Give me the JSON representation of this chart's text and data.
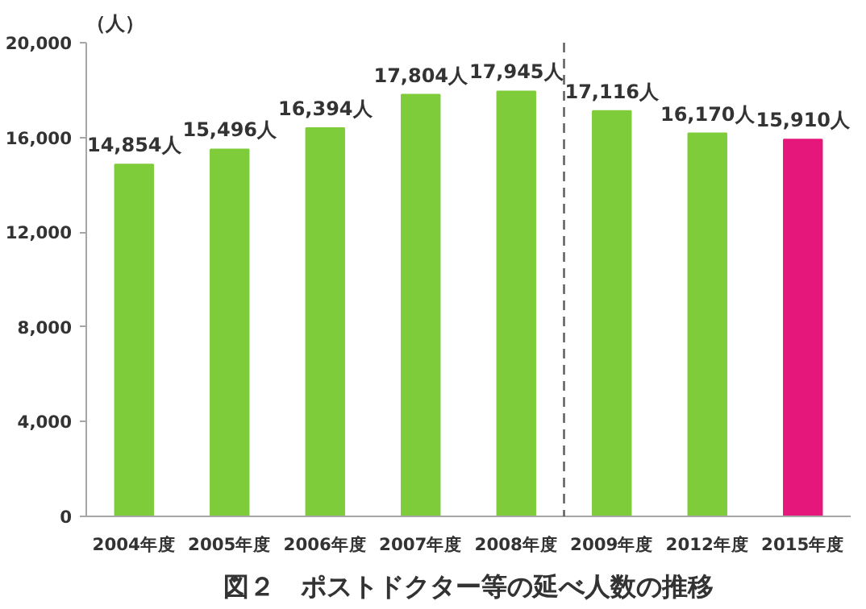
{
  "chart_data": {
    "type": "bar",
    "title": "図２　ポストドクター等の延べ人数の推移",
    "ylabel": "（人）",
    "categories": [
      "2004年度",
      "2005年度",
      "2006年度",
      "2007年度",
      "2008年度",
      "2009年度",
      "2012年度",
      "2015年度"
    ],
    "values": [
      14854,
      15496,
      16394,
      17804,
      17945,
      17116,
      16170,
      15910
    ],
    "colors": [
      "#7fcc3a",
      "#7fcc3a",
      "#7fcc3a",
      "#7fcc3a",
      "#7fcc3a",
      "#7fcc3a",
      "#7fcc3a",
      "#e6177a"
    ],
    "value_labels": [
      "14,854人",
      "15,496人",
      "16,394人",
      "17,804人",
      "17,945人",
      "17,116人",
      "16,170人",
      "15,910人"
    ],
    "ylim": [
      0,
      20000
    ],
    "yticks": [
      {
        "value": 0,
        "label": "0"
      },
      {
        "value": 4000,
        "label": "4,000"
      },
      {
        "value": 8000,
        "label": "8,000"
      },
      {
        "value": 12000,
        "label": "12,000"
      },
      {
        "value": 16000,
        "label": "16,000"
      },
      {
        "value": 20000,
        "label": "20,000"
      }
    ],
    "grid": false
  }
}
